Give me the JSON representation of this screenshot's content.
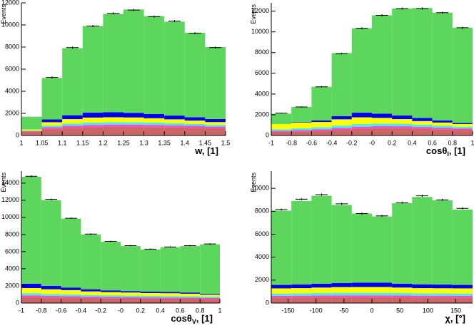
{
  "chart_data": [
    {
      "type": "histogram",
      "ylabel": "Events",
      "xlabel": {
        "text": "w, [1]"
      },
      "bins": [
        1,
        1.05,
        1.1,
        1.15,
        1.2,
        1.25,
        1.3,
        1.35,
        1.4,
        1.45,
        1.5
      ],
      "xlim": [
        1,
        1.5
      ],
      "xticks": [
        1,
        1.05,
        1.1,
        1.15,
        1.2,
        1.25,
        1.3,
        1.35,
        1.4,
        1.45,
        1.5
      ],
      "ylim": [
        0,
        12000
      ],
      "yticks": [
        0,
        2000,
        4000,
        6000,
        8000,
        10000,
        12000
      ],
      "series": [
        {
          "color": "#cc6666",
          "values": [
            350,
            600,
            700,
            750,
            780,
            780,
            760,
            730,
            700,
            650
          ]
        },
        {
          "color": "#ff44cc",
          "values": [
            50,
            150,
            180,
            200,
            200,
            200,
            190,
            180,
            170,
            150
          ]
        },
        {
          "color": "#44eeee",
          "values": [
            50,
            150,
            200,
            220,
            220,
            220,
            210,
            200,
            180,
            160
          ]
        },
        {
          "color": "#ffff00",
          "values": [
            100,
            300,
            400,
            450,
            450,
            430,
            400,
            350,
            300,
            250
          ]
        },
        {
          "color": "#0000ee",
          "values": [
            0,
            250,
            350,
            450,
            450,
            420,
            380,
            340,
            300,
            280
          ]
        },
        {
          "color": "#5cd65c",
          "values": [
            1150,
            3750,
            6070,
            7830,
            8900,
            9350,
            8860,
            8500,
            7650,
            6510
          ]
        }
      ],
      "data": {
        "color": "#000000",
        "values": [
          null,
          5250,
          7950,
          9900,
          11050,
          11350,
          10750,
          10350,
          9250,
          7950
        ],
        "errors": [
          null,
          100,
          100,
          100,
          100,
          100,
          100,
          100,
          100,
          100
        ]
      }
    },
    {
      "type": "histogram",
      "ylabel": "Events",
      "xlabel": {
        "text": "cosθ",
        "sub": "l",
        "tail": ", [1]"
      },
      "bins": [
        -1,
        -0.8,
        -0.6,
        -0.4,
        -0.2,
        0,
        0.2,
        0.4,
        0.6,
        0.8,
        1
      ],
      "xlim": [
        -1,
        1
      ],
      "xticks": [
        -1,
        -0.8,
        -0.6,
        -0.4,
        -0.2,
        {
          "value": 0,
          "label": "-0"
        },
        0.2,
        0.4,
        0.6,
        0.8,
        1
      ],
      "ylim": [
        0,
        12800
      ],
      "yticks": [
        0,
        2000,
        4000,
        6000,
        8000,
        10000,
        12000
      ],
      "series": [
        {
          "color": "#cc6666",
          "values": [
            350,
            400,
            450,
            550,
            650,
            700,
            700,
            650,
            600,
            550
          ]
        },
        {
          "color": "#ff44cc",
          "values": [
            100,
            120,
            150,
            180,
            200,
            200,
            190,
            170,
            150,
            130
          ]
        },
        {
          "color": "#44eeee",
          "values": [
            150,
            170,
            200,
            230,
            250,
            250,
            240,
            220,
            200,
            170
          ]
        },
        {
          "color": "#ffff00",
          "values": [
            500,
            550,
            500,
            600,
            650,
            550,
            450,
            350,
            300,
            250
          ]
        },
        {
          "color": "#0000ee",
          "values": [
            0,
            50,
            150,
            300,
            450,
            400,
            350,
            300,
            200,
            100
          ]
        },
        {
          "color": "#5cd65c",
          "values": [
            1000,
            1460,
            3250,
            6090,
            8150,
            9500,
            10320,
            10610,
            10400,
            9200
          ]
        }
      ],
      "data": {
        "color": "#000000",
        "values": [
          2150,
          2750,
          4700,
          7900,
          10350,
          11600,
          12250,
          12250,
          11850,
          10400
        ],
        "errors": [
          50,
          60,
          70,
          90,
          100,
          110,
          110,
          110,
          110,
          100
        ]
      }
    },
    {
      "type": "histogram",
      "ylabel": "Events",
      "xlabel": {
        "text": "cosθ",
        "sub": "V",
        "tail": ", [1]"
      },
      "bins": [
        -1,
        -0.8,
        -0.6,
        -0.4,
        -0.2,
        0,
        0.2,
        0.4,
        0.6,
        0.8,
        1
      ],
      "xlim": [
        -1,
        1
      ],
      "xticks": [
        -1,
        -0.8,
        -0.6,
        -0.4,
        -0.2,
        {
          "value": 0,
          "label": "-0"
        },
        0.2,
        0.4,
        0.6,
        0.8,
        1
      ],
      "ylim": [
        0,
        15400
      ],
      "yticks": [
        0,
        2000,
        4000,
        6000,
        8000,
        10000,
        12000,
        14000
      ],
      "series": [
        {
          "color": "#cc6666",
          "values": [
            700,
            650,
            620,
            580,
            560,
            540,
            520,
            510,
            500,
            480
          ]
        },
        {
          "color": "#ff44cc",
          "values": [
            200,
            180,
            170,
            160,
            150,
            150,
            140,
            140,
            130,
            130
          ]
        },
        {
          "color": "#44eeee",
          "values": [
            250,
            230,
            220,
            200,
            190,
            180,
            170,
            170,
            160,
            150
          ]
        },
        {
          "color": "#ffff00",
          "values": [
            600,
            550,
            500,
            420,
            380,
            360,
            340,
            330,
            300,
            200
          ]
        },
        {
          "color": "#0000ee",
          "values": [
            500,
            400,
            300,
            250,
            200,
            170,
            160,
            150,
            140,
            100
          ]
        },
        {
          "color": "#5cd65c",
          "values": [
            12500,
            9990,
            8040,
            6390,
            5670,
            5250,
            4920,
            5200,
            5420,
            5790
          ]
        }
      ],
      "data": {
        "color": "#000000",
        "values": [
          14800,
          12100,
          9900,
          8050,
          7200,
          6700,
          6300,
          6550,
          6700,
          6900
        ],
        "errors": [
          120,
          110,
          100,
          90,
          85,
          80,
          80,
          80,
          80,
          85
        ]
      }
    },
    {
      "type": "histogram",
      "ylabel": "Events",
      "xlabel": {
        "text": "χ, [°]"
      },
      "bins": [
        -180,
        -144,
        -108,
        -72,
        -36,
        0,
        36,
        72,
        108,
        144,
        180
      ],
      "xlim": [
        -180,
        180
      ],
      "xticks": [
        -150,
        -100,
        -50,
        0,
        50,
        100,
        150
      ],
      "ylim": [
        0,
        11500
      ],
      "yticks": [
        0,
        2000,
        4000,
        6000,
        8000,
        10000
      ],
      "series": [
        {
          "color": "#cc6666",
          "values": [
            480,
            490,
            500,
            510,
            510,
            510,
            500,
            490,
            490,
            480
          ]
        },
        {
          "color": "#ff44cc",
          "values": [
            150,
            150,
            160,
            160,
            160,
            160,
            160,
            150,
            150,
            150
          ]
        },
        {
          "color": "#44eeee",
          "values": [
            200,
            200,
            210,
            220,
            220,
            220,
            210,
            200,
            200,
            200
          ]
        },
        {
          "color": "#ffff00",
          "values": [
            450,
            460,
            480,
            500,
            510,
            510,
            480,
            460,
            450,
            450
          ]
        },
        {
          "color": "#0000ee",
          "values": [
            300,
            320,
            330,
            350,
            380,
            380,
            340,
            330,
            320,
            300
          ]
        },
        {
          "color": "#5cd65c",
          "values": [
            6470,
            7280,
            7670,
            6810,
            6020,
            5770,
            7010,
            7620,
            7340,
            6570
          ]
        }
      ],
      "data": {
        "color": "#000000",
        "values": [
          8150,
          9050,
          9450,
          8650,
          7800,
          7600,
          8750,
          9350,
          9000,
          8250
        ],
        "errors": [
          90,
          95,
          100,
          95,
          90,
          90,
          95,
          100,
          95,
          90
        ]
      }
    }
  ]
}
